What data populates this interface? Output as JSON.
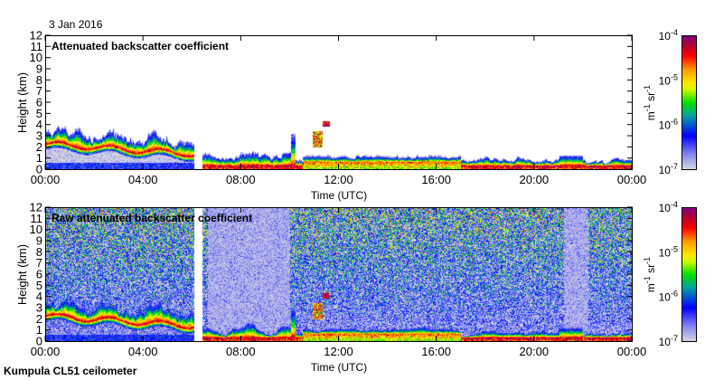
{
  "date_label": "3 Jan 2016",
  "footer": "Kumpula CL51 ceilometer",
  "colors": {
    "colormap": [
      "#d4d4e4",
      "#8080f0",
      "#0000ff",
      "#00a0a0",
      "#00e000",
      "#ffff00",
      "#ff9900",
      "#ff0000",
      "#b00030",
      "#800080"
    ]
  },
  "chart_data": [
    {
      "type": "heatmap",
      "title": "Attenuated backscatter coefficient",
      "xlabel": "Time (UTC)",
      "ylabel": "Height (km)",
      "xticks": [
        "00:00",
        "04:00",
        "08:00",
        "12:00",
        "16:00",
        "20:00",
        "00:00"
      ],
      "yticks": [
        "0",
        "1",
        "2",
        "3",
        "4",
        "5",
        "6",
        "7",
        "8",
        "9",
        "10",
        "11",
        "12"
      ],
      "xlim_hours": [
        0,
        24
      ],
      "ylim_km": [
        0,
        12
      ],
      "data_gap_hours": [
        6.05,
        6.4
      ],
      "colorbar": {
        "label_base": "m",
        "label_exp1": "-1",
        "label_mid": " sr",
        "label_exp2": "-1",
        "scale": "log",
        "range": [
          1e-07,
          0.0001
        ],
        "ticks": [
          {
            "base": "10",
            "exp": "-4"
          },
          {
            "base": "10",
            "exp": "-5"
          },
          {
            "base": "10",
            "exp": "-6"
          },
          {
            "base": "10",
            "exp": "-7"
          }
        ]
      }
    },
    {
      "type": "heatmap",
      "title": "Raw attenuated backscatter coefficient",
      "xlabel": "Time (UTC)",
      "ylabel": "Height (km)",
      "xticks": [
        "00:00",
        "04:00",
        "08:00",
        "12:00",
        "16:00",
        "20:00",
        "00:00"
      ],
      "yticks": [
        "0",
        "1",
        "2",
        "3",
        "4",
        "5",
        "6",
        "7",
        "8",
        "9",
        "10",
        "11",
        "12"
      ],
      "xlim_hours": [
        0,
        24
      ],
      "ylim_km": [
        0,
        12
      ],
      "data_gap_hours": [
        6.05,
        6.4
      ],
      "colorbar": {
        "label_base": "m",
        "label_exp1": "-1",
        "label_mid": " sr",
        "label_exp2": "-1",
        "scale": "log",
        "range": [
          1e-07,
          0.0001
        ],
        "ticks": [
          {
            "base": "10",
            "exp": "-4"
          },
          {
            "base": "10",
            "exp": "-5"
          },
          {
            "base": "10",
            "exp": "-6"
          },
          {
            "base": "10",
            "exp": "-7"
          }
        ]
      }
    }
  ]
}
